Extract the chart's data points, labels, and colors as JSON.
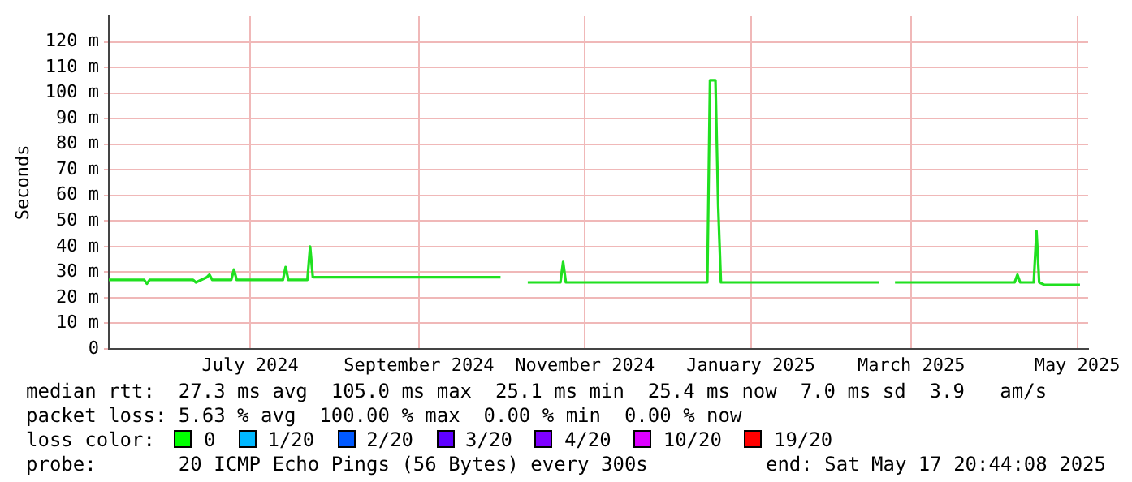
{
  "chart_data": {
    "type": "line",
    "ylabel": "Seconds",
    "x": [
      "2024-05-25",
      "2024-06-07",
      "2024-06-08",
      "2024-06-09",
      "2024-06-25",
      "2024-06-26",
      "2024-06-30",
      "2024-07-01",
      "2024-07-02",
      "2024-07-09",
      "2024-07-10",
      "2024-07-11",
      "2024-07-28",
      "2024-07-29",
      "2024-07-30",
      "2024-08-06",
      "2024-08-07",
      "2024-08-08",
      "2024-10-16",
      "2024-10-21",
      "2024-10-26",
      "2024-11-07",
      "2024-11-08",
      "2024-11-09",
      "2024-12-31",
      "2025-01-01",
      "2025-01-03",
      "2025-01-04",
      "2025-01-05",
      "2025-03-04",
      "2025-03-07",
      "2025-03-10",
      "2025-04-23",
      "2025-04-24",
      "2025-04-25",
      "2025-04-30",
      "2025-05-01",
      "2025-05-02",
      "2025-05-04",
      "2025-05-17"
    ],
    "series": [
      {
        "color": "#20e020",
        "values": [
          27,
          27,
          25.5,
          27,
          27,
          26,
          28,
          29,
          27,
          27,
          31,
          27,
          27,
          32,
          27,
          27,
          40,
          28,
          28,
          null,
          26,
          26,
          34,
          26,
          26,
          105,
          105,
          56,
          26,
          26,
          null,
          26,
          26,
          29,
          26,
          26,
          46,
          26,
          25,
          25
        ]
      }
    ],
    "xlim": [
      "2024-05-25",
      "2025-05-20"
    ],
    "xticks": [
      {
        "value": "2024-07-16",
        "label": "July 2024"
      },
      {
        "value": "2024-09-16",
        "label": "September 2024"
      },
      {
        "value": "2024-11-16",
        "label": "November 2024"
      },
      {
        "value": "2025-01-16",
        "label": "January 2025"
      },
      {
        "value": "2025-03-16",
        "label": "March 2025"
      },
      {
        "value": "2025-05-16",
        "label": "May 2025"
      }
    ],
    "ylim": [
      0,
      130
    ],
    "yticks": [
      0,
      {
        "value": 10,
        "label": "10 m"
      },
      {
        "value": 20,
        "label": "20 m"
      },
      {
        "value": 30,
        "label": "30 m"
      },
      {
        "value": 40,
        "label": "40 m"
      },
      {
        "value": 50,
        "label": "50 m"
      },
      {
        "value": 60,
        "label": "60 m"
      },
      {
        "value": 70,
        "label": "70 m"
      },
      {
        "value": 80,
        "label": "80 m"
      },
      {
        "value": 90,
        "label": "90 m"
      },
      {
        "value": 100,
        "label": "100 m"
      },
      {
        "value": 110,
        "label": "110 m"
      },
      {
        "value": 120,
        "label": "120 m"
      }
    ],
    "grid": true,
    "legend": false,
    "marker": "none",
    "line_style": "solid",
    "annotations": [
      "median rtt:  27.3 ms avg  105.0 ms max  25.1 ms min  25.4 ms now  7.0 ms sd  3.9   am/s",
      "packet loss: 5.63 % avg  100.00 % max  0.00 % min  0.00 % now",
      "loss color:",
      "0",
      "1/20",
      "2/20",
      "3/20",
      "4/20",
      "10/20",
      "19/20",
      "probe:       20 ICMP Echo Pings (56 Bytes) every 300s",
      "end: Sat May 17 20:44:08 2025"
    ]
  }
}
